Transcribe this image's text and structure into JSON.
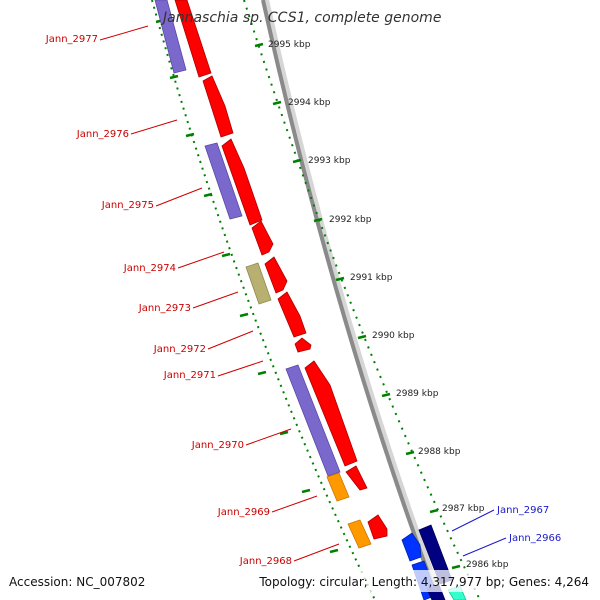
{
  "title": "Jannaschia sp. CCS1, complete genome",
  "footer": {
    "accession": "Accession: NC_007802",
    "stats": "Topology: circular; Length: 4,317,977 bp; Genes: 4,264"
  },
  "kbp_labels": [
    "2995 kbp",
    "2994 kbp",
    "2993 kbp",
    "2992 kbp",
    "2991 kbp",
    "2990 kbp",
    "2989 kbp",
    "2988 kbp",
    "2987 kbp",
    "2986 kbp"
  ],
  "genes": [
    {
      "name": "Jann_2977",
      "color": "#cc0000"
    },
    {
      "name": "Jann_2976",
      "color": "#cc0000"
    },
    {
      "name": "Jann_2975",
      "color": "#cc0000"
    },
    {
      "name": "Jann_2974",
      "color": "#cc0000"
    },
    {
      "name": "Jann_2973",
      "color": "#cc0000"
    },
    {
      "name": "Jann_2972",
      "color": "#cc0000"
    },
    {
      "name": "Jann_2971",
      "color": "#cc0000"
    },
    {
      "name": "Jann_2970",
      "color": "#cc0000"
    },
    {
      "name": "Jann_2969",
      "color": "#cc0000"
    },
    {
      "name": "Jann_2968",
      "color": "#cc0000"
    },
    {
      "name": "Jann_2967",
      "color": "#1a1acc"
    },
    {
      "name": "Jann_2966",
      "color": "#1a1acc"
    }
  ],
  "colors": {
    "cds_red": "#ff0000",
    "rna_purple": "#7b68cc",
    "orange": "#ff9900",
    "khaki": "#b8b070",
    "blue": "#0033ff",
    "navy": "#000080",
    "teal": "#33ffcc",
    "backbone": "#888888",
    "tick_green": "#008000"
  }
}
